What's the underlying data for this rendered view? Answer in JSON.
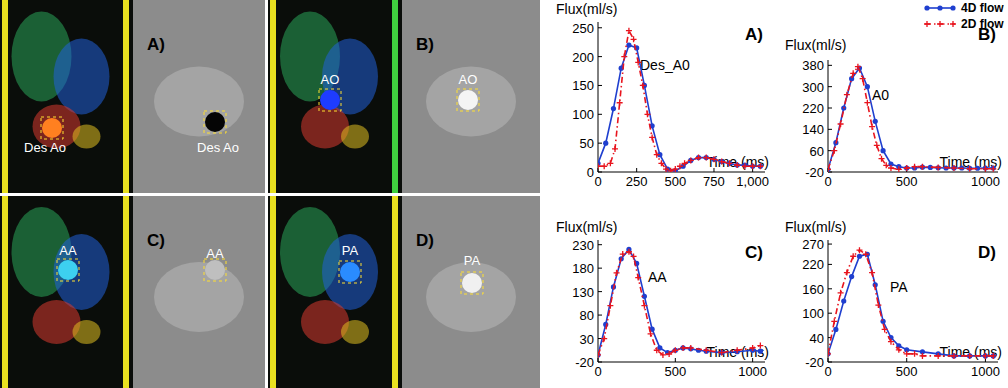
{
  "panels": [
    {
      "label": "A)",
      "vessel": "Des Ao"
    },
    {
      "label": "B)",
      "vessel": "AO"
    },
    {
      "label": "C)",
      "vessel": "AA"
    },
    {
      "label": "D)",
      "vessel": "PA"
    }
  ],
  "chart_data": [
    {
      "type": "line",
      "title": "A)",
      "annotation": "Des_A0",
      "y_label": "Flux(ml/s)",
      "x_label": "Time (ms)",
      "xlim": [
        0,
        1080
      ],
      "ylim": [
        0,
        260
      ],
      "xticks": [
        0,
        250,
        500,
        750,
        {
          "value": 1000,
          "label": "1,000"
        }
      ],
      "yticks": [
        0,
        50,
        100,
        150,
        200,
        250
      ],
      "legend": "upper right",
      "series": [
        {
          "name": "4D flow",
          "color": "#1f3fcf",
          "marker": "circle",
          "line_style": "solid",
          "x": [
            0,
            50,
            100,
            150,
            200,
            250,
            300,
            350,
            400,
            450,
            500,
            550,
            600,
            650,
            700,
            750,
            800,
            850,
            900,
            950,
            1000,
            1050
          ],
          "values": [
            15,
            50,
            110,
            180,
            220,
            215,
            150,
            80,
            30,
            5,
            2,
            10,
            20,
            25,
            25,
            22,
            18,
            15,
            12,
            12,
            10,
            10
          ]
        },
        {
          "name": "2D flow",
          "color": "#e8141e",
          "marker": "plus",
          "line_style": "dashdot",
          "x": [
            0,
            40,
            80,
            110,
            140,
            170,
            200,
            230,
            260,
            290,
            320,
            350,
            380,
            410,
            440,
            470,
            500,
            530,
            560,
            600,
            650,
            700,
            750,
            800,
            850,
            900,
            950,
            1000,
            1050
          ],
          "values": [
            10,
            10,
            15,
            40,
            120,
            200,
            245,
            230,
            190,
            150,
            100,
            60,
            30,
            15,
            5,
            2,
            5,
            10,
            15,
            20,
            25,
            25,
            22,
            18,
            15,
            12,
            10,
            10,
            10
          ]
        }
      ]
    },
    {
      "type": "line",
      "title": "B)",
      "annotation": "A0",
      "y_label": "Flux(ml/s)",
      "x_label": "Time (ms)",
      "xlim": [
        0,
        1080
      ],
      "ylim": [
        -20,
        400
      ],
      "xticks": [
        0,
        500,
        1000
      ],
      "yticks": [
        -20,
        60,
        140,
        220,
        300,
        380
      ],
      "series": [
        {
          "name": "4D flow",
          "color": "#1f3fcf",
          "marker": "circle",
          "line_style": "solid",
          "x": [
            0,
            50,
            100,
            150,
            200,
            250,
            300,
            350,
            400,
            450,
            500,
            550,
            600,
            650,
            700,
            750,
            800,
            850,
            900,
            950,
            1000,
            1050
          ],
          "values": [
            -10,
            90,
            220,
            330,
            370,
            300,
            170,
            60,
            10,
            0,
            -5,
            -5,
            -2,
            -3,
            -4,
            -5,
            -5,
            -5,
            -6,
            -6,
            -5,
            -5
          ]
        },
        {
          "name": "2D flow",
          "color": "#e8141e",
          "marker": "plus",
          "line_style": "dashdot",
          "x": [
            0,
            40,
            80,
            120,
            160,
            190,
            220,
            250,
            280,
            310,
            340,
            370,
            400,
            450,
            500,
            550,
            600,
            700,
            800,
            900,
            1000,
            1050
          ],
          "values": [
            -10,
            60,
            160,
            270,
            350,
            375,
            330,
            240,
            150,
            80,
            30,
            5,
            -5,
            -10,
            -5,
            0,
            0,
            -3,
            -5,
            -8,
            -8,
            -8
          ]
        }
      ]
    },
    {
      "type": "line",
      "title": "C)",
      "annotation": "AA",
      "y_label": "Flux(ml/s)",
      "x_label": "Time (ms)",
      "xlim": [
        0,
        1080
      ],
      "ylim": [
        -20,
        240
      ],
      "xticks": [
        0,
        500,
        1000
      ],
      "yticks": [
        -20,
        30,
        80,
        130,
        180,
        230
      ],
      "series": [
        {
          "name": "4D flow",
          "color": "#1f3fcf",
          "marker": "circle",
          "line_style": "solid",
          "x": [
            0,
            50,
            100,
            150,
            200,
            250,
            300,
            350,
            400,
            450,
            500,
            550,
            600,
            650,
            700,
            800,
            900,
            1000,
            1050
          ],
          "values": [
            -5,
            60,
            140,
            200,
            220,
            190,
            120,
            50,
            10,
            0,
            5,
            10,
            8,
            5,
            3,
            0,
            2,
            5,
            3
          ]
        },
        {
          "name": "2D flow",
          "color": "#e8141e",
          "marker": "plus",
          "line_style": "dashdot",
          "x": [
            0,
            40,
            80,
            120,
            160,
            200,
            230,
            260,
            300,
            340,
            380,
            420,
            460,
            500,
            550,
            600,
            700,
            800,
            900,
            1000,
            1050
          ],
          "values": [
            -5,
            30,
            100,
            170,
            210,
            215,
            205,
            160,
            100,
            40,
            5,
            -5,
            -3,
            5,
            10,
            10,
            5,
            0,
            5,
            10,
            15
          ]
        }
      ]
    },
    {
      "type": "line",
      "title": "D)",
      "annotation": "PA",
      "y_label": "Flux(ml/s)",
      "x_label": "Time (ms)",
      "xlim": [
        0,
        1080
      ],
      "ylim": [
        -20,
        280
      ],
      "xticks": [
        0,
        500,
        1000
      ],
      "yticks": [
        -20,
        40,
        100,
        160,
        220,
        270
      ],
      "series": [
        {
          "name": "4D flow",
          "color": "#1f3fcf",
          "marker": "circle",
          "line_style": "solid",
          "x": [
            0,
            50,
            100,
            150,
            200,
            250,
            300,
            350,
            400,
            450,
            500,
            600,
            700,
            800,
            900,
            1000,
            1050
          ],
          "values": [
            0,
            60,
            130,
            190,
            240,
            245,
            170,
            80,
            40,
            20,
            10,
            5,
            0,
            -5,
            -5,
            -5,
            -5
          ]
        },
        {
          "name": "2D flow",
          "color": "#e8141e",
          "marker": "plus",
          "line_style": "dashdot",
          "x": [
            0,
            40,
            80,
            120,
            160,
            200,
            240,
            280,
            320,
            360,
            400,
            450,
            500,
            550,
            600,
            700,
            800,
            900,
            1000,
            1050
          ],
          "values": [
            0,
            80,
            150,
            200,
            240,
            255,
            245,
            200,
            120,
            60,
            30,
            10,
            0,
            0,
            -5,
            -5,
            -5,
            -5,
            -5,
            -5
          ]
        }
      ]
    }
  ]
}
